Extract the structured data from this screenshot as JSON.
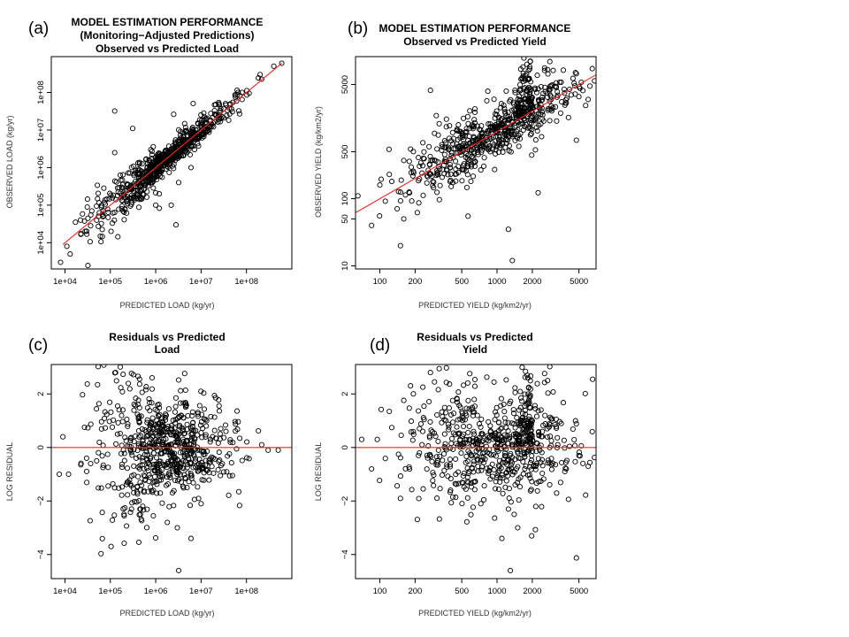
{
  "colors": {
    "points": "#000000",
    "fit_line": "#ff2020",
    "frame": "#000000",
    "background": "#ffffff"
  },
  "chart_data": [
    {
      "id": "a",
      "type": "scatter",
      "panel_label": "(a)",
      "title_lines": [
        "MODEL ESTIMATION PERFORMANCE",
        "(Monitoring−Adjusted Predictions)",
        "Observed vs Predicted Load"
      ],
      "xlabel": "PREDICTED LOAD (kg/yr)",
      "ylabel": "OBSERVED LOAD (kg/yr)",
      "x_scale": "log",
      "y_scale": "log",
      "xlim": [
        5000,
        1000000000
      ],
      "ylim": [
        2000,
        900000000
      ],
      "x_ticks": [
        10000,
        100000,
        1000000,
        10000000,
        100000000
      ],
      "x_tick_labels": [
        "1e+04",
        "1e+05",
        "1e+06",
        "1e+07",
        "1e+08"
      ],
      "y_ticks": [
        10000,
        100000,
        1000000,
        10000000,
        100000000
      ],
      "y_tick_labels": [
        "1e+04",
        "1e+05",
        "1e+06",
        "1e+07",
        "1e+08"
      ],
      "reference_line": {
        "type": "1:1",
        "x": [
          9000,
          600000000
        ],
        "y": [
          9000,
          600000000
        ]
      },
      "point_cloud": {
        "n": 700,
        "seed": 11,
        "center": [
          1500000,
          1500000
        ],
        "spread": 0.72,
        "scatter_sd": 0.16,
        "outlier_rate": 0.06,
        "outlier_sd": 0.5,
        "fan": 1.2
      },
      "points": [
        [
          8000,
          3000
        ],
        [
          11000,
          8000
        ],
        [
          13000,
          5000
        ],
        [
          17000,
          35000
        ],
        [
          22000,
          40000
        ],
        [
          28000,
          20000
        ],
        [
          39000,
          70000
        ],
        [
          60000,
          15000
        ],
        [
          125000,
          2500000
        ],
        [
          125000,
          32000000
        ],
        [
          210000,
          80000
        ],
        [
          310000,
          11000000
        ],
        [
          780000,
          3000000
        ],
        [
          1000000,
          100000
        ],
        [
          1200000,
          200000
        ],
        [
          2200000,
          100000
        ],
        [
          2800000,
          30000
        ],
        [
          3200000,
          400000
        ],
        [
          6000000,
          1000000
        ],
        [
          80000000,
          100000000
        ],
        [
          200000000,
          300000000
        ],
        [
          400000000,
          500000000
        ],
        [
          600000000,
          600000000
        ]
      ]
    },
    {
      "id": "b",
      "type": "scatter",
      "panel_label": "(b)",
      "title_lines": [
        "MODEL ESTIMATION PERFORMANCE",
        "Observed vs Predicted Yield"
      ],
      "xlabel": "PREDICTED YIELD (kg/km2/yr)",
      "ylabel": "OBSERVED YIELD (kg/km2/yr)",
      "x_scale": "log",
      "y_scale": "log",
      "xlim": [
        62,
        7000
      ],
      "ylim": [
        9,
        13000
      ],
      "x_ticks": [
        100,
        200,
        500,
        1000,
        2000,
        5000
      ],
      "x_tick_labels": [
        "100",
        "200",
        "500",
        "1000",
        "2000",
        "5000"
      ],
      "y_ticks": [
        10,
        50,
        100,
        500,
        5000
      ],
      "y_tick_labels": [
        "10",
        "50",
        "100",
        "500",
        "5000"
      ],
      "reference_line": {
        "type": "1:1",
        "x": [
          62,
          7000
        ],
        "y": [
          62,
          7000
        ]
      },
      "point_cloud": {
        "n": 620,
        "seed": 23,
        "center": [
          900,
          900
        ],
        "spread": 0.38,
        "scatter_sd": 0.2,
        "outlier_rate": 0.07,
        "outlier_sd": 0.45,
        "fan": 0.6,
        "cluster": {
          "x": [
            1500,
            1950
          ],
          "n": 90,
          "up": 0.55
        }
      },
      "points": [
        [
          65,
          110
        ],
        [
          85,
          40
        ],
        [
          100,
          160
        ],
        [
          150,
          20
        ],
        [
          160,
          50
        ],
        [
          270,
          4100
        ],
        [
          1350,
          12
        ],
        [
          1250,
          35
        ],
        [
          1600,
          6000
        ],
        [
          1800,
          10000
        ],
        [
          1900,
          8500
        ],
        [
          5000,
          3300
        ],
        [
          6000,
          3000
        ],
        [
          4300,
          3500
        ]
      ]
    },
    {
      "id": "c",
      "type": "scatter",
      "panel_label": "(c)",
      "title_lines": [
        "Residuals vs Predicted",
        "Load"
      ],
      "xlabel": "PREDICTED LOAD (kg/yr)",
      "ylabel": "LOG RESIDUAL",
      "x_scale": "log",
      "y_scale": "linear",
      "xlim": [
        5000,
        1000000000
      ],
      "ylim": [
        -4.9,
        3.1
      ],
      "x_ticks": [
        10000,
        100000,
        1000000,
        10000000,
        100000000
      ],
      "x_tick_labels": [
        "1e+04",
        "1e+05",
        "1e+06",
        "1e+07",
        "1e+08"
      ],
      "y_ticks": [
        -4,
        -2,
        0,
        2
      ],
      "y_tick_labels": [
        "−4",
        "−2",
        "0",
        "2"
      ],
      "reference_line": {
        "type": "horizontal",
        "y": 0
      },
      "point_cloud": {
        "n": 700,
        "seed": 11,
        "center": [
          1500000,
          0
        ],
        "spread": 0.72,
        "scatter_sd": 0.36,
        "outlier_rate": 0.06,
        "outlier_sd": 1.1,
        "fan": 1.2
      },
      "points": [
        [
          7500,
          -1.0
        ],
        [
          9000,
          0.4
        ],
        [
          12000,
          -1.0
        ],
        [
          30000,
          -0.4
        ],
        [
          130000,
          2.8
        ],
        [
          200000,
          -2.5
        ],
        [
          450000,
          -2.3
        ],
        [
          1800000,
          -2.8
        ],
        [
          2800000,
          1.85
        ],
        [
          3000000,
          -3.0
        ],
        [
          3200000,
          -4.6
        ],
        [
          6000000,
          -3.4
        ],
        [
          10000000,
          -2.1
        ],
        [
          300000000,
          -0.1
        ],
        [
          500000000,
          -0.1
        ]
      ]
    },
    {
      "id": "d",
      "type": "scatter",
      "panel_label": "(d)",
      "title_lines": [
        "Residuals vs Predicted",
        "Yield"
      ],
      "xlabel": "PREDICTED YIELD (kg/km2/yr)",
      "ylabel": "LOG RESIDUAL",
      "x_scale": "log",
      "y_scale": "linear",
      "xlim": [
        62,
        7000
      ],
      "ylim": [
        -4.9,
        3.1
      ],
      "x_ticks": [
        100,
        200,
        500,
        1000,
        2000,
        5000
      ],
      "x_tick_labels": [
        "100",
        "200",
        "500",
        "1000",
        "2000",
        "5000"
      ],
      "y_ticks": [
        -4,
        -2,
        0,
        2
      ],
      "y_tick_labels": [
        "−4",
        "−2",
        "0",
        "2"
      ],
      "reference_line": {
        "type": "horizontal",
        "y": 0
      },
      "point_cloud": {
        "n": 620,
        "seed": 23,
        "center": [
          900,
          0
        ],
        "spread": 0.38,
        "scatter_sd": 0.42,
        "outlier_rate": 0.07,
        "outlier_sd": 1.0,
        "fan": 0.6,
        "cluster": {
          "x": [
            1500,
            1950
          ],
          "n": 90,
          "up": 1.2
        }
      },
      "points": [
        [
          70,
          0.3
        ],
        [
          85,
          -0.8
        ],
        [
          95,
          0.3
        ],
        [
          150,
          -1.9
        ],
        [
          270,
          2.8
        ],
        [
          1100,
          -3.4
        ],
        [
          1250,
          -2.3
        ],
        [
          1300,
          -4.6
        ],
        [
          1400,
          -2.5
        ],
        [
          1500,
          -3.0
        ],
        [
          1600,
          1.85
        ],
        [
          1900,
          1.5
        ],
        [
          5000,
          -0.3
        ],
        [
          6000,
          -0.7
        ]
      ]
    }
  ]
}
